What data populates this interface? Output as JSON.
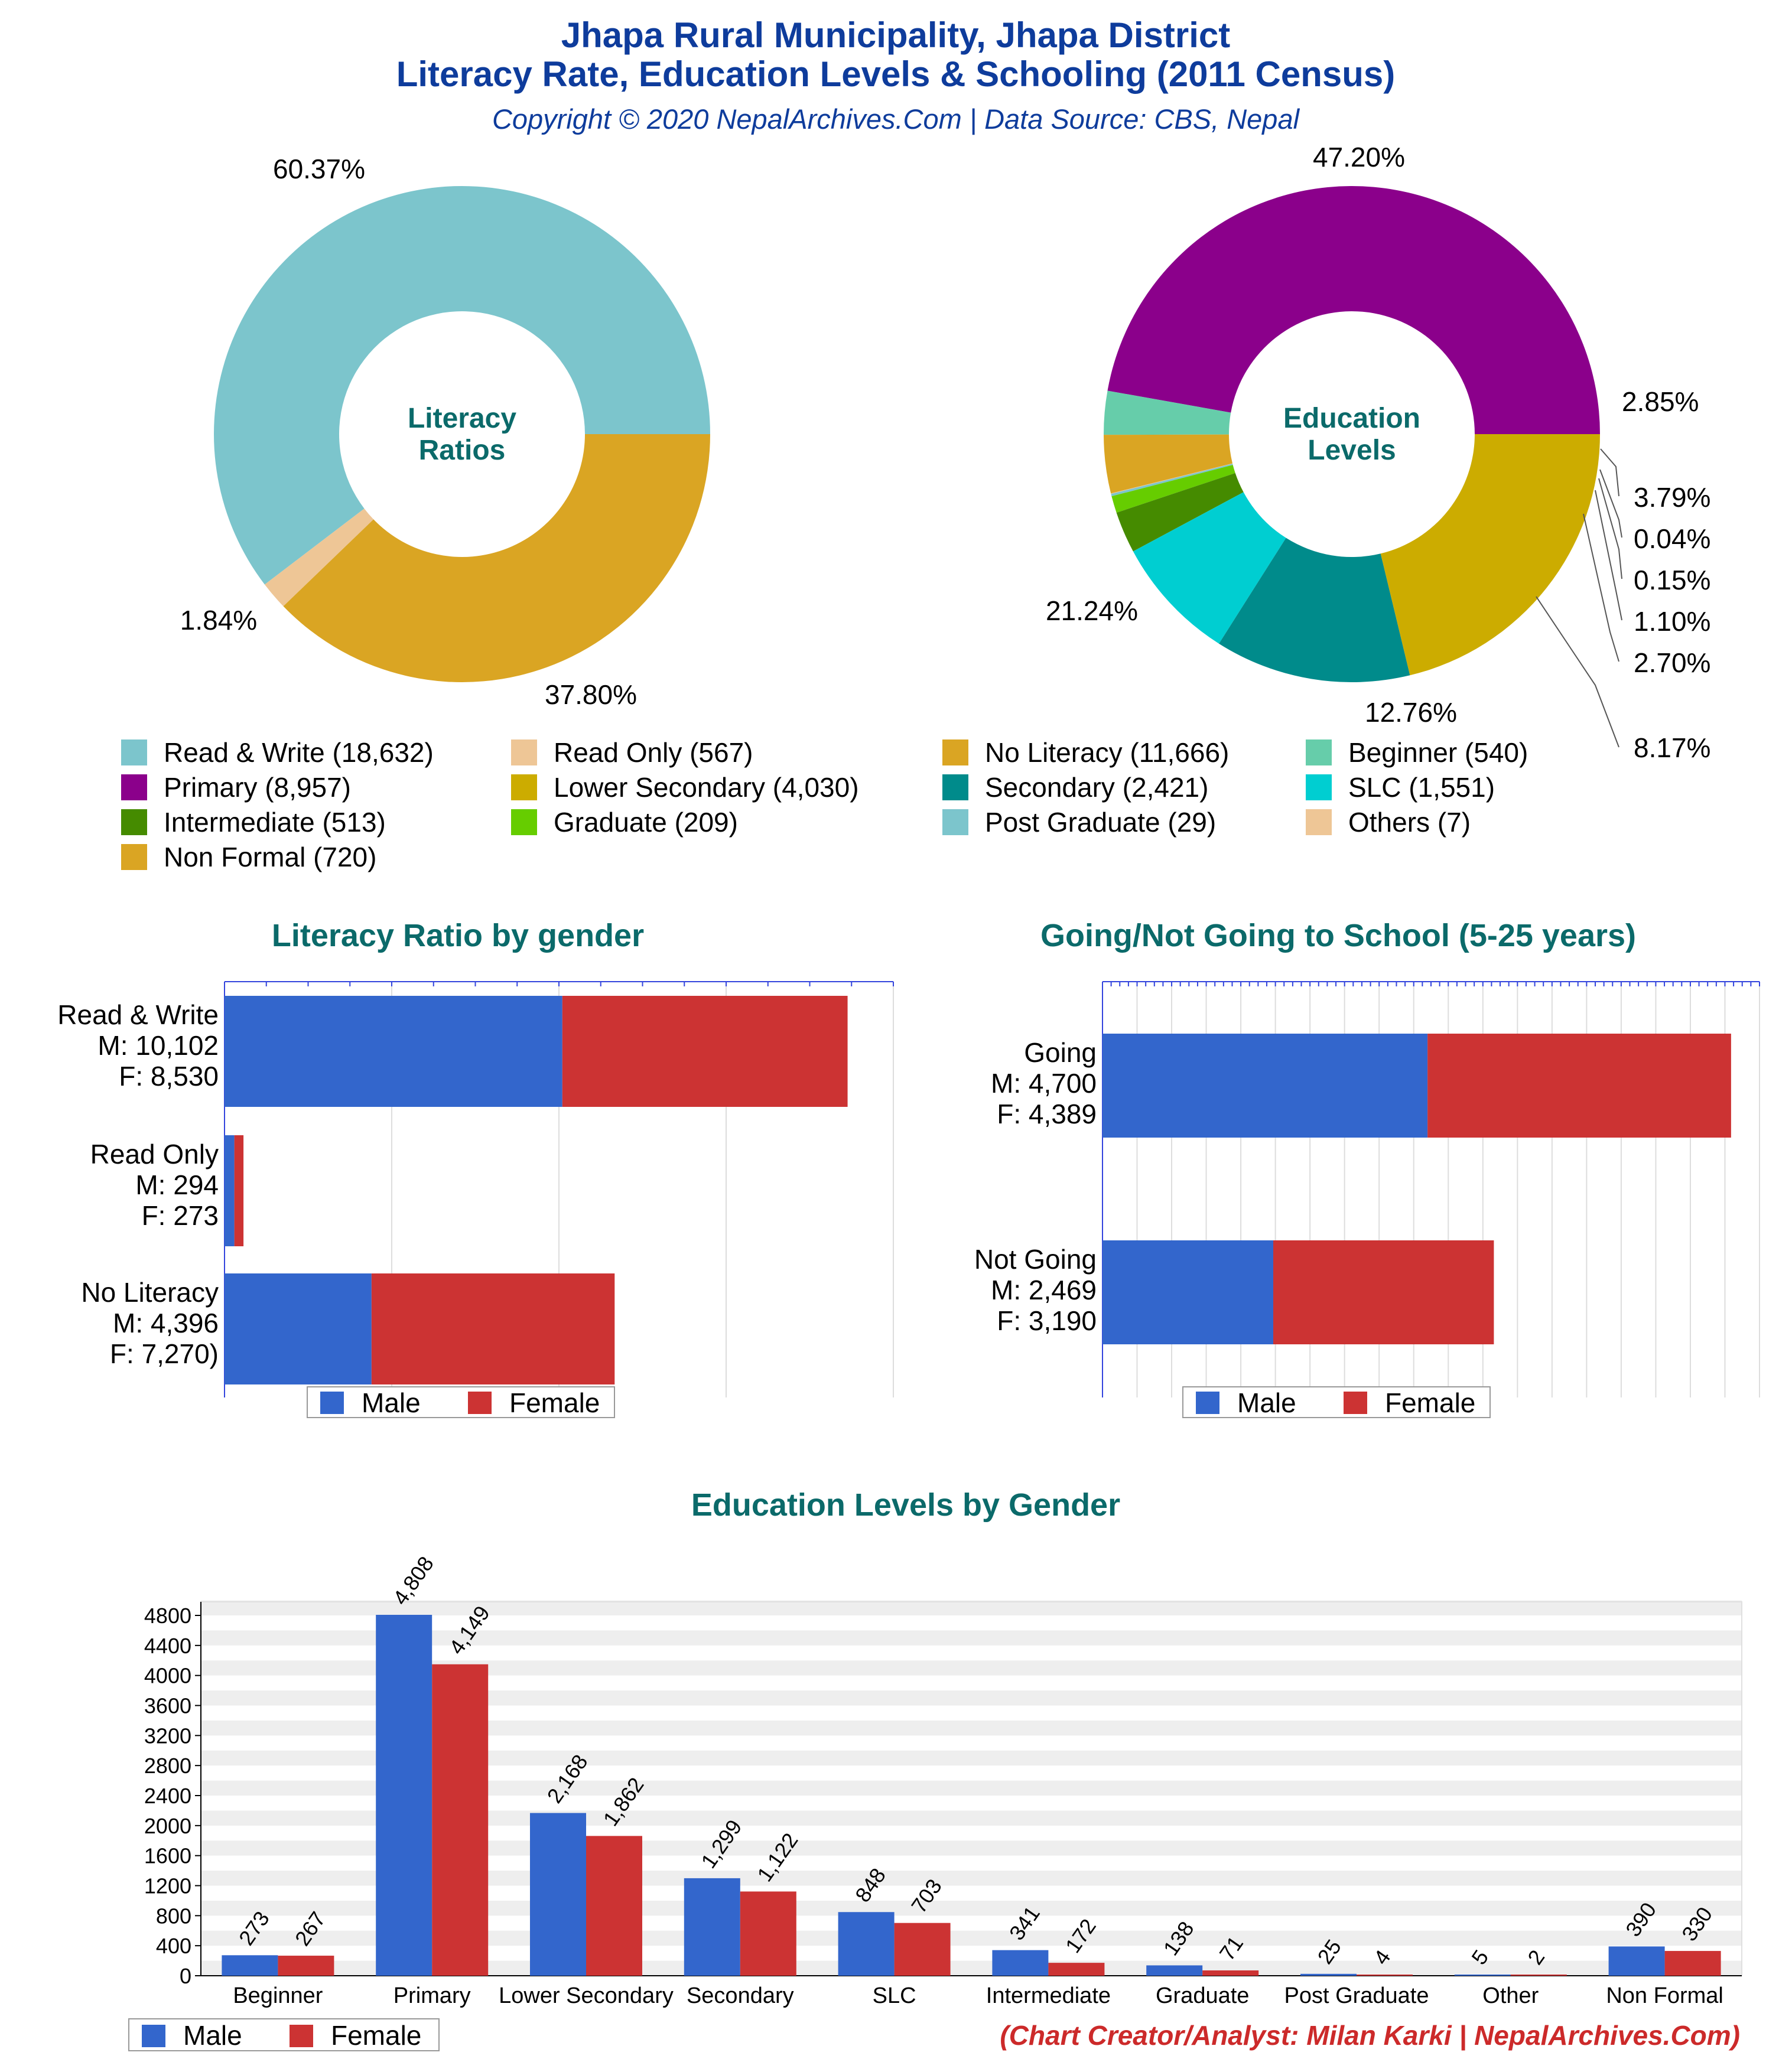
{
  "header": {
    "title_line1": "Jhapa Rural Municipality, Jhapa District",
    "title_line2": "Literacy Rate, Education Levels & Schooling (2011 Census)",
    "subtitle": "Copyright © 2020 NepalArchives.Com | Data Source: CBS, Nepal"
  },
  "footer": {
    "credit": "(Chart Creator/Analyst: Milan Karki | NepalArchives.Com)"
  },
  "colors": {
    "title": "#0e3c9c",
    "section_title": "#0b6a6a",
    "credit": "#cc2a2a",
    "male": "#3366cc",
    "female": "#cc3333"
  },
  "legend": [
    {
      "label": "Read & Write (18,632)",
      "color": "#7cc5cc"
    },
    {
      "label": "Read Only (567)",
      "color": "#eec696"
    },
    {
      "label": "No Literacy (11,666)",
      "color": "#daa523"
    },
    {
      "label": "Beginner (540)",
      "color": "#66cdaa"
    },
    {
      "label": "Primary (8,957)",
      "color": "#8b008b"
    },
    {
      "label": "Lower Secondary (4,030)",
      "color": "#ccac00"
    },
    {
      "label": "Secondary (2,421)",
      "color": "#008b8b"
    },
    {
      "label": "SLC (1,551)",
      "color": "#00ced1"
    },
    {
      "label": "Intermediate (513)",
      "color": "#458b00"
    },
    {
      "label": "Graduate (209)",
      "color": "#66cd00"
    },
    {
      "label": "Post Graduate (29)",
      "color": "#7cc5cc"
    },
    {
      "label": "Others (7)",
      "color": "#eec696"
    },
    {
      "label": "Non Formal (720)",
      "color": "#daa523"
    }
  ],
  "chart_data": [
    {
      "type": "pie",
      "center_label": "Literacy Ratios",
      "categories": [
        "Read & Write",
        "Read Only",
        "No Literacy"
      ],
      "values": [
        18632,
        567,
        11666
      ],
      "labels": [
        "60.37%",
        "1.84%",
        "37.80%"
      ],
      "colors": [
        "#7cc5cc",
        "#eec696",
        "#daa523"
      ]
    },
    {
      "type": "pie",
      "center_label": "Education Levels",
      "categories": [
        "Primary",
        "Beginner",
        "Non Formal",
        "Others",
        "Post Graduate",
        "Graduate",
        "Intermediate",
        "SLC",
        "Secondary",
        "Lower Secondary"
      ],
      "values": [
        8957,
        540,
        720,
        7,
        29,
        209,
        513,
        1551,
        2421,
        4030
      ],
      "labels": [
        "47.20%",
        "2.85%",
        "3.79%",
        "0.04%",
        "0.15%",
        "1.10%",
        "2.70%",
        "8.17%",
        "12.76%",
        "21.24%"
      ],
      "colors": [
        "#8b008b",
        "#66cdaa",
        "#daa523",
        "#eec696",
        "#7cc5cc",
        "#66cd00",
        "#458b00",
        "#00ced1",
        "#008b8b",
        "#ccac00"
      ]
    },
    {
      "type": "bar",
      "title": "Literacy Ratio by gender",
      "orientation": "horizontal",
      "stacked": true,
      "categories": [
        "Read & Write",
        "Read Only",
        "No Literacy"
      ],
      "category_labels": [
        [
          "Read & Write",
          "M: 10,102",
          "F: 8,530"
        ],
        [
          "Read Only",
          "M: 294",
          "F: 273"
        ],
        [
          "No Literacy",
          "M: 4,396",
          "F: 7,270)"
        ]
      ],
      "series": [
        {
          "name": "Male",
          "values": [
            10102,
            294,
            4396
          ]
        },
        {
          "name": "Female",
          "values": [
            8530,
            273,
            7270
          ]
        }
      ],
      "xlim": [
        0,
        20000
      ],
      "legend": "bottom"
    },
    {
      "type": "bar",
      "title": "Going/Not Going to School (5-25 years)",
      "orientation": "horizontal",
      "stacked": true,
      "categories": [
        "Going",
        "Not Going"
      ],
      "category_labels": [
        [
          "Going",
          "M: 4,700",
          "F: 4,389"
        ],
        [
          "Not Going",
          "M: 2,469",
          "F: 3,190"
        ]
      ],
      "series": [
        {
          "name": "Male",
          "values": [
            4700,
            2469
          ]
        },
        {
          "name": "Female",
          "values": [
            4389,
            3190
          ]
        }
      ],
      "xlim": [
        0,
        9500
      ],
      "legend": "bottom"
    },
    {
      "type": "bar",
      "title": "Education Levels by Gender",
      "categories": [
        "Beginner",
        "Primary",
        "Lower Secondary",
        "Secondary",
        "SLC",
        "Intermediate",
        "Graduate",
        "Post Graduate",
        "Other",
        "Non Formal"
      ],
      "series": [
        {
          "name": "Male",
          "values": [
            273,
            4808,
            2168,
            1299,
            848,
            341,
            138,
            25,
            5,
            390
          ],
          "labels": [
            "273",
            "4,808",
            "2,168",
            "1,299",
            "848",
            "341",
            "138",
            "25",
            "5",
            "390"
          ]
        },
        {
          "name": "Female",
          "values": [
            267,
            4149,
            1862,
            1122,
            703,
            172,
            71,
            4,
            2,
            330
          ],
          "labels": [
            "267",
            "4,149",
            "1,862",
            "1,122",
            "703",
            "172",
            "71",
            "4",
            "2",
            "330"
          ]
        }
      ],
      "yticks": [
        "0",
        "400",
        "800",
        "1200",
        "1600",
        "2000",
        "2400",
        "2800",
        "3200",
        "3600",
        "4000",
        "4400",
        "4800"
      ],
      "ylim": [
        0,
        4800
      ],
      "grid": true,
      "legend": "bottom-left"
    }
  ]
}
